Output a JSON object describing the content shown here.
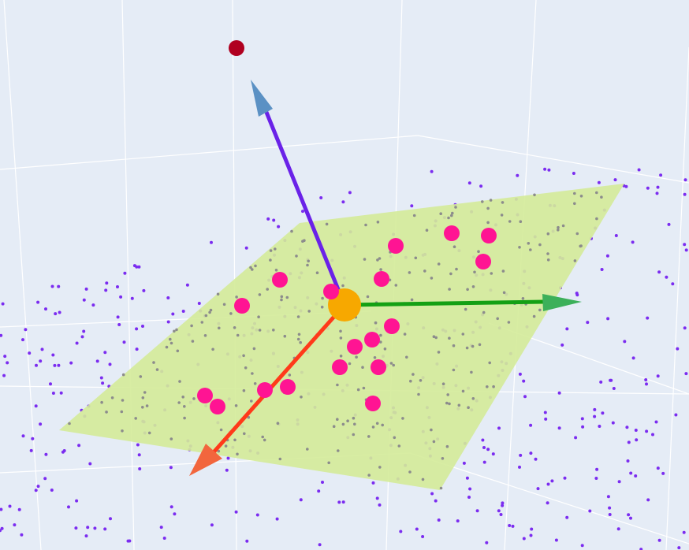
{
  "chart_data": {
    "type": "scatter3d",
    "title": "",
    "background_color": "#e5ecf6",
    "plane": {
      "color": "#d4eb99"
    },
    "axes_arrows": [
      {
        "name": "x-arrow",
        "shaft_color": "#ff3a1a",
        "head_color": "#f2663d"
      },
      {
        "name": "y-arrow",
        "shaft_color": "#14a014",
        "head_color": "#3cb05a"
      },
      {
        "name": "z-arrow",
        "shaft_color": "#6a22e8",
        "head_color": "#5b91c4"
      }
    ],
    "origin_marker": {
      "color": "#f7a800"
    },
    "outlier_point": {
      "color": "#b00020"
    },
    "highlight_points": {
      "color": "#ff1493",
      "count": 18
    },
    "background_points": {
      "color": "#7b2cf0",
      "count": 420
    },
    "plane_points": {
      "color": "#8c8c8c",
      "count": 260
    },
    "grid": true
  }
}
